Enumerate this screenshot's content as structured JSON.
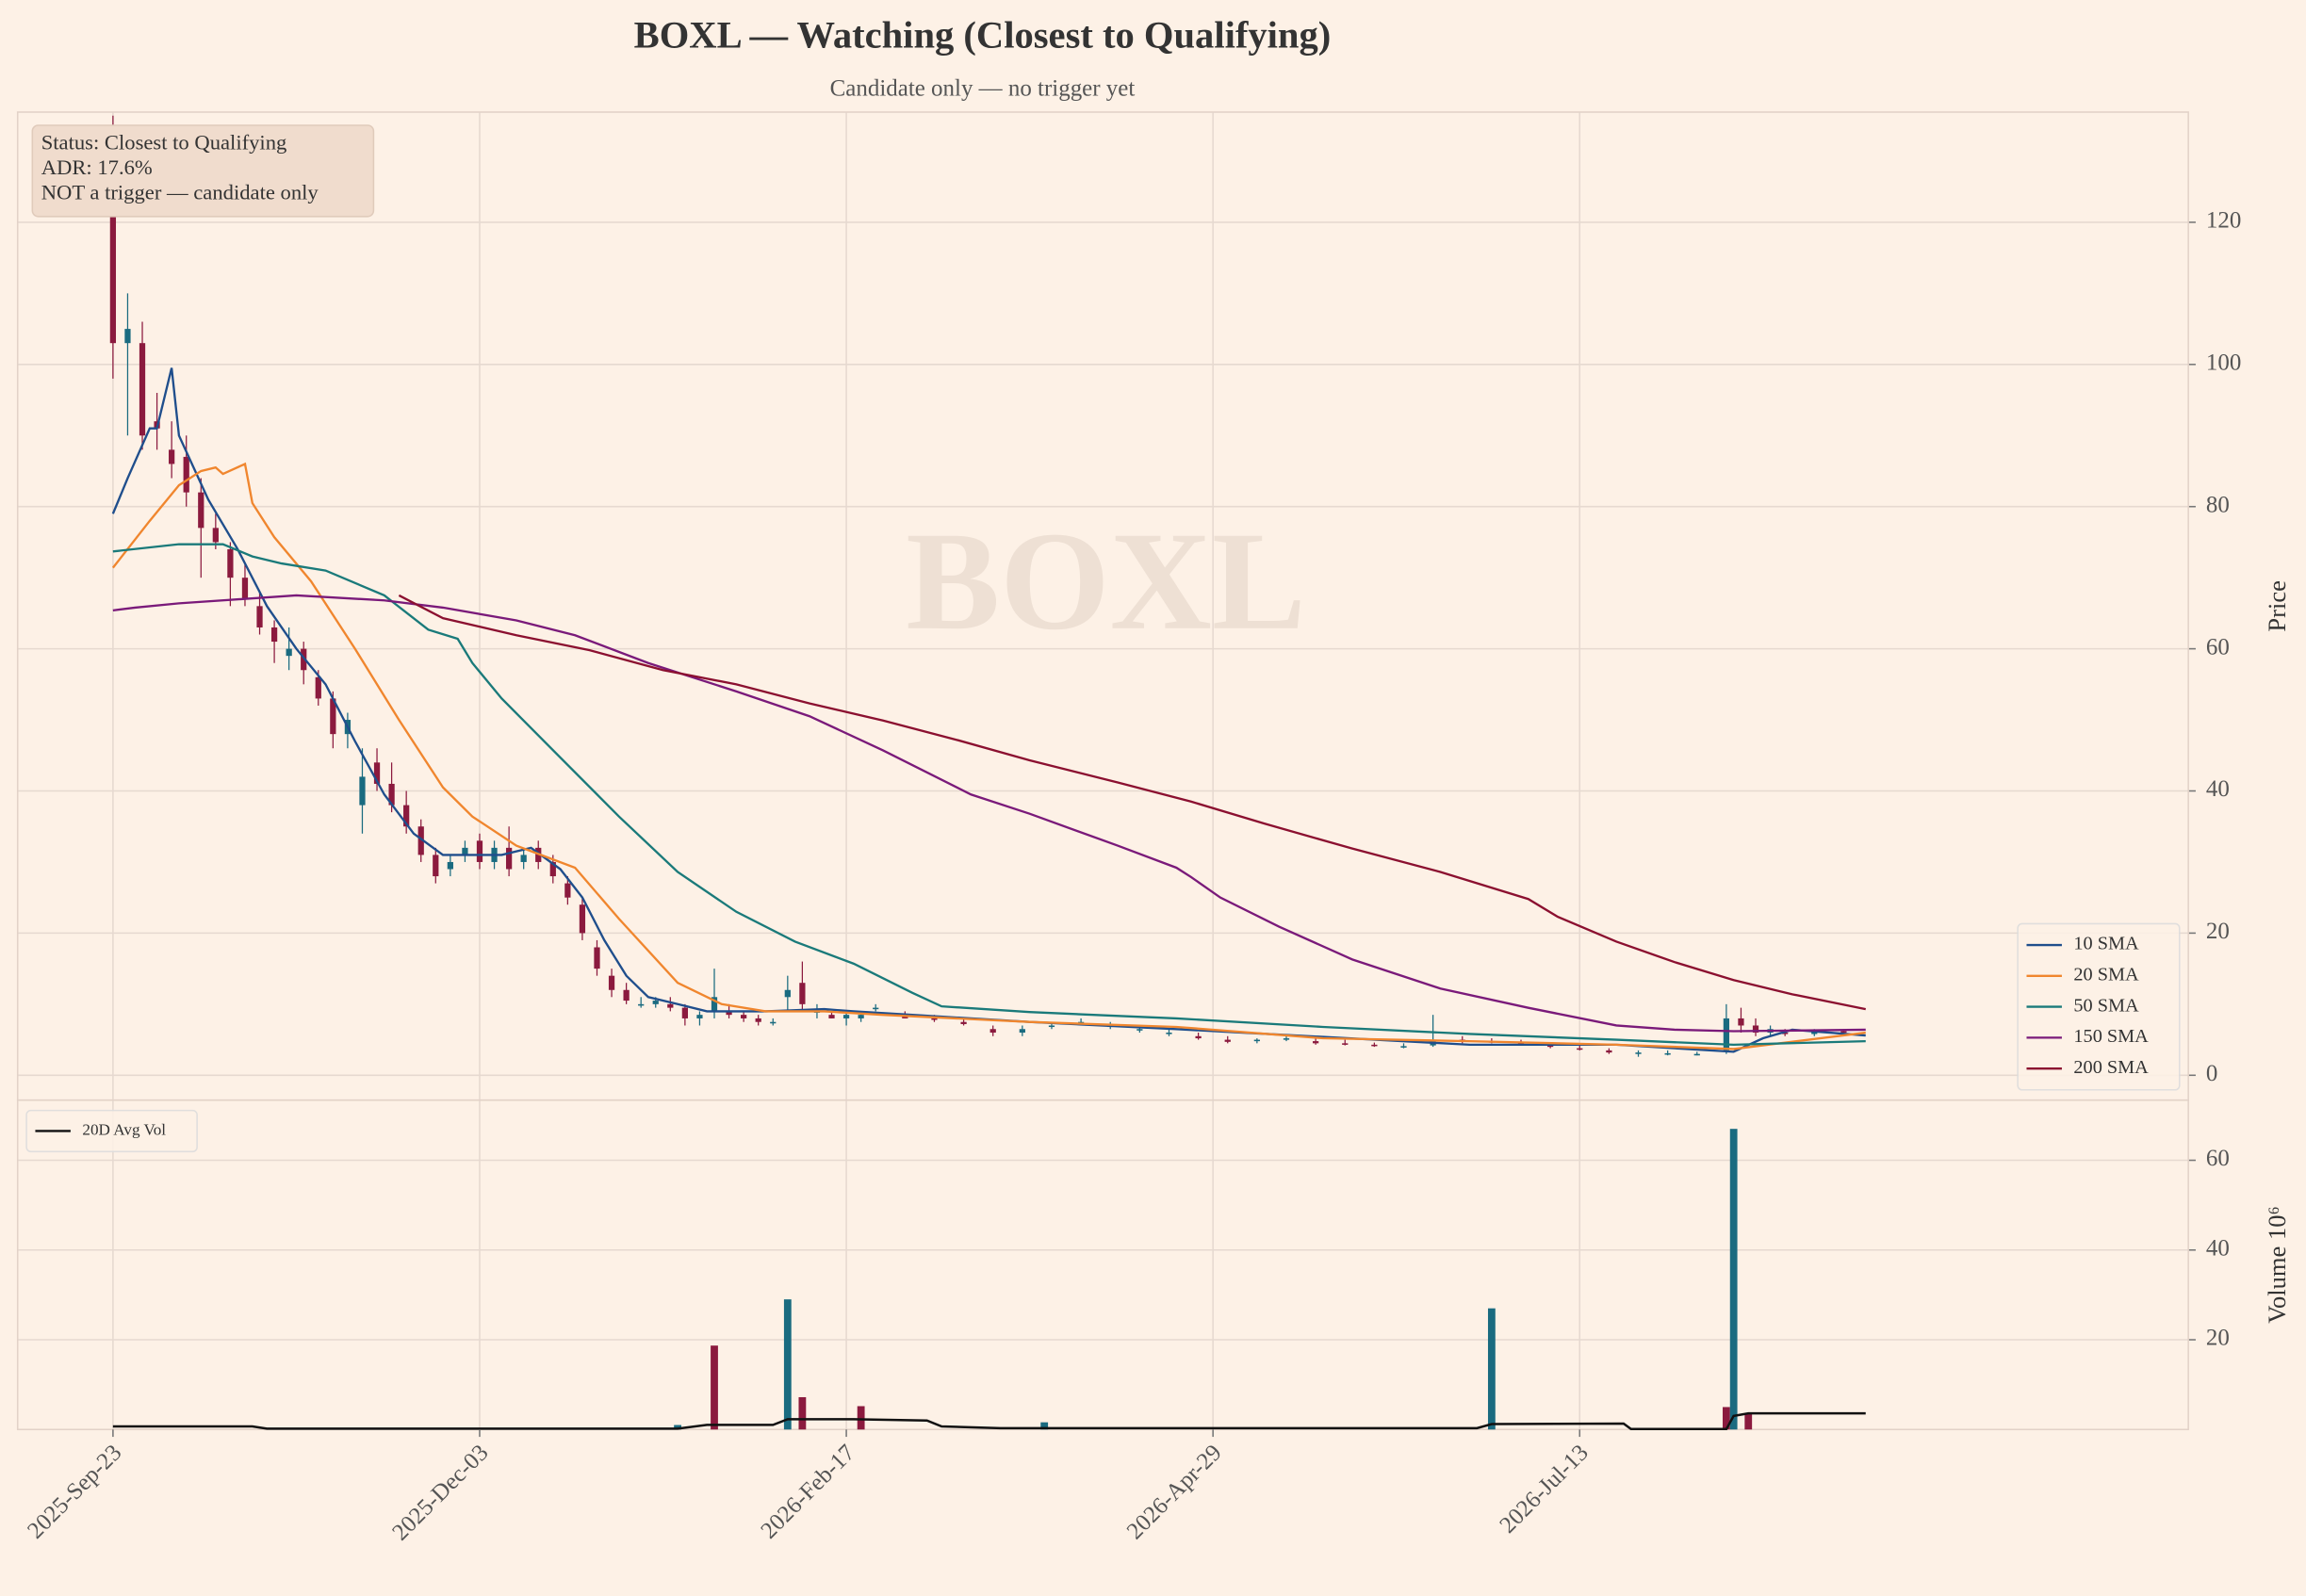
{
  "chart_data": [
    {
      "type": "candlestick",
      "title": "BOXL — Watching (Closest to Qualifying)",
      "subtitle": "Candidate only — no trigger yet",
      "watermark": "BOXL",
      "ylabel": "Price",
      "annotation": [
        "Status: Closest to Qualifying",
        "ADR: 17.6%",
        "NOT a trigger — candidate only"
      ],
      "xlim": [
        -13,
        283
      ],
      "ylim": [
        -3.5,
        135.5
      ],
      "yticks": [
        0,
        20,
        40,
        60,
        80,
        100,
        120
      ],
      "grid": true,
      "legend": "lower right",
      "up_color": "#1a6b80",
      "down_color": "#8b1a3e",
      "candles": {
        "x": [
          0,
          2,
          4,
          6,
          8,
          10,
          12,
          14,
          16,
          18,
          20,
          22,
          24,
          26,
          28,
          30,
          32,
          34,
          36,
          38,
          40,
          42,
          44,
          46,
          48,
          50,
          52,
          54,
          56,
          58,
          60,
          62,
          64,
          66,
          68,
          70,
          72,
          74,
          76,
          78,
          80,
          82,
          84,
          86,
          88,
          90,
          92,
          94,
          96,
          98,
          100,
          102,
          104,
          108,
          112,
          116,
          120,
          124,
          128,
          132,
          136,
          140,
          144,
          148,
          152,
          156,
          160,
          164,
          168,
          172,
          176,
          180,
          184,
          188,
          192,
          196,
          200,
          204,
          208,
          212,
          216,
          220,
          222,
          224,
          226,
          228,
          232,
          236
        ],
        "open": [
          122,
          103,
          103,
          92,
          88,
          87,
          82,
          77,
          74,
          70,
          66,
          63,
          59,
          60,
          56,
          53,
          48,
          38,
          44,
          41,
          38,
          35,
          31,
          29,
          31,
          33,
          30,
          32,
          30,
          32,
          30,
          27,
          24,
          18,
          14,
          12,
          10,
          10,
          10,
          9.5,
          8,
          9,
          9,
          8.5,
          8,
          7.5,
          11,
          13,
          9,
          8.5,
          8,
          8,
          9.5,
          8.5,
          8,
          7.5,
          6.5,
          6,
          7,
          7.5,
          7,
          6.5,
          6,
          5.5,
          5,
          4.8,
          5,
          4.8,
          4.5,
          4.3,
          4,
          4.2,
          5,
          4.8,
          4.5,
          4.2,
          3.8,
          3.5,
          3,
          3,
          3,
          3.5,
          8,
          7,
          6,
          6,
          5.8,
          6.2
        ],
        "high": [
          135,
          110,
          106,
          96,
          92,
          90,
          84,
          79,
          75,
          72,
          68,
          64,
          63,
          61,
          57,
          54,
          51,
          46,
          46,
          44,
          40,
          36,
          32,
          31,
          33,
          34,
          33,
          35,
          32,
          33,
          31,
          28,
          25,
          19,
          15,
          13,
          11,
          11,
          11,
          10,
          9,
          15,
          10,
          9,
          8.5,
          8,
          14,
          16,
          10,
          9,
          9,
          9,
          10,
          9,
          8.5,
          8,
          7,
          7,
          7.5,
          8,
          7.5,
          7,
          6.5,
          6,
          5.5,
          5.2,
          5.5,
          5.2,
          5,
          4.6,
          4.5,
          8.5,
          5.5,
          5.2,
          5,
          4.5,
          4.2,
          3.8,
          3.5,
          3.5,
          3.3,
          10,
          9.5,
          8,
          7,
          6.5,
          6.5,
          6.5
        ],
        "low": [
          98,
          90,
          88,
          88,
          84,
          80,
          70,
          74,
          66,
          66,
          62,
          58,
          57,
          55,
          52,
          46,
          46,
          34,
          40,
          37,
          34,
          30,
          27,
          28,
          30,
          29,
          29,
          28,
          29,
          29,
          27,
          24,
          19,
          14,
          11,
          10,
          9.5,
          9.5,
          9,
          7,
          7,
          8,
          8,
          7.5,
          7,
          7,
          9,
          9,
          8,
          8,
          7,
          7.5,
          9,
          8,
          7.5,
          7,
          5.5,
          5.5,
          6.5,
          7,
          6.5,
          6,
          5.5,
          5,
          4.5,
          4.5,
          4.8,
          4.3,
          4.2,
          4,
          3.8,
          4,
          4.5,
          4.5,
          4.2,
          3.8,
          3.5,
          3,
          2.6,
          2.8,
          2.8,
          3,
          6,
          5.5,
          5.5,
          5.5,
          5.5,
          5.8
        ],
        "close": [
          103,
          105,
          90,
          91,
          86,
          82,
          77,
          75,
          70,
          67,
          63,
          61,
          60,
          57,
          53,
          48,
          50,
          42,
          41,
          38,
          35,
          31,
          28,
          30,
          32,
          30,
          32,
          29,
          31,
          30,
          28,
          25,
          20,
          15,
          12,
          10.5,
          10,
          10.5,
          9.5,
          8,
          8.5,
          11,
          8.5,
          8,
          7.5,
          7.5,
          12,
          10,
          9,
          8,
          8.5,
          8.5,
          9.5,
          8,
          7.8,
          7.2,
          6,
          6.5,
          7,
          7.5,
          7,
          6.5,
          6,
          5.2,
          4.7,
          5,
          5.2,
          4.5,
          4.4,
          4.2,
          4.1,
          5,
          4.8,
          4.6,
          4.4,
          4,
          3.7,
          3.2,
          3.2,
          3.1,
          3,
          8,
          7,
          6,
          6.5,
          5.8,
          6.2,
          6
        ]
      },
      "series": [
        {
          "name": "10 SMA",
          "color": "#1f4e8c",
          "x": [
            0,
            2,
            5,
            6,
            8,
            9,
            13,
            17,
            21,
            25,
            29,
            33,
            37,
            41,
            45,
            49,
            53,
            57,
            61,
            64,
            67,
            70,
            73,
            77,
            81,
            89,
            97,
            101,
            109,
            125,
            145,
            165,
            185,
            205,
            221,
            225,
            229,
            239
          ],
          "values": [
            79,
            84,
            91,
            91,
            99.5,
            90,
            81,
            74,
            66,
            60,
            55,
            47,
            39.5,
            34,
            31,
            31,
            31,
            32,
            29,
            25,
            19,
            14,
            11,
            10,
            9,
            9,
            9.3,
            9,
            8.5,
            7.5,
            6.5,
            5.4,
            4.3,
            4.3,
            3.3,
            5.2,
            6.4,
            5.6
          ]
        },
        {
          "name": "20 SMA",
          "color": "#f0862e",
          "x": [
            0,
            5,
            9,
            12,
            14,
            15,
            18,
            19,
            22,
            27,
            33,
            39,
            45,
            49,
            55,
            63,
            69,
            77,
            83,
            89,
            97,
            105,
            125,
            145,
            165,
            185,
            205,
            221,
            239
          ],
          "values": [
            71.4,
            78,
            83,
            85,
            85.5,
            84.6,
            86,
            80.5,
            75.7,
            69.5,
            60,
            50,
            40.5,
            36.4,
            32.3,
            29.2,
            22,
            13,
            10,
            9,
            9,
            8.5,
            7.5,
            6.8,
            5.2,
            4.8,
            4.3,
            3.7,
            6
          ]
        },
        {
          "name": "50 SMA",
          "color": "#1a7a7a",
          "x": [
            0,
            9,
            15,
            19,
            23,
            29,
            37,
            43,
            47,
            49,
            53,
            61,
            69,
            77,
            85,
            93,
            101,
            109,
            113,
            125,
            145,
            165,
            185,
            205,
            221,
            239
          ],
          "values": [
            73.7,
            74.7,
            74.7,
            73,
            72,
            71,
            67.5,
            62.7,
            61.4,
            58,
            53,
            44.7,
            36.4,
            28.6,
            23,
            18.8,
            15.7,
            11.6,
            9.7,
            8.9,
            8,
            6.8,
            5.8,
            5,
            4.3,
            4.8
          ]
        },
        {
          "name": "150 SMA",
          "color": "#7a1a7a",
          "x": [
            0,
            3,
            9,
            25,
            37,
            45,
            55,
            63,
            73,
            85,
            95,
            105,
            117,
            125,
            137,
            145,
            147,
            151,
            159,
            169,
            181,
            193,
            205,
            213,
            221,
            239
          ],
          "values": [
            65.4,
            65.8,
            66.4,
            67.5,
            66.8,
            65.8,
            64,
            61.9,
            58,
            54,
            50.5,
            45.7,
            39.5,
            36.8,
            32.3,
            29.2,
            27.9,
            25,
            20.9,
            16.3,
            12.2,
            9.5,
            7,
            6.4,
            6.2,
            6.4
          ]
        },
        {
          "name": "200 SMA",
          "color": "#8b1030",
          "x": [
            39,
            45,
            55,
            65,
            75,
            85,
            95,
            105,
            115,
            125,
            137,
            147,
            157,
            169,
            181,
            193,
            197,
            205,
            213,
            221,
            229,
            239
          ],
          "values": [
            67.5,
            64.3,
            61.9,
            59.8,
            57,
            55,
            52.3,
            49.9,
            47.2,
            44.3,
            41.2,
            38.5,
            35.4,
            31.9,
            28.6,
            24.8,
            22.3,
            18.8,
            15.9,
            13.4,
            11.4,
            9.3
          ]
        }
      ]
    },
    {
      "type": "bar",
      "ylabel": "Volume 10⁶",
      "xlim": [
        -13,
        283
      ],
      "ylim": [
        0,
        73.4
      ],
      "yticks": [
        20,
        40,
        60
      ],
      "grid": true,
      "legend": "upper left",
      "xticks": [
        {
          "value": 0,
          "label": "2025-Sep-23"
        },
        {
          "value": 50,
          "label": "2025-Dec-03"
        },
        {
          "value": 100,
          "label": "2026-Feb-17"
        },
        {
          "value": 150,
          "label": "2026-Apr-29"
        },
        {
          "value": 200,
          "label": "2026-Jul-13"
        }
      ],
      "bars": {
        "x": [
          77,
          82,
          92,
          94,
          102,
          127,
          188,
          220,
          221,
          223
        ],
        "values": [
          1,
          18.7,
          29,
          7.2,
          5.2,
          1.6,
          27,
          5,
          67,
          3.6
        ],
        "colors": [
          "#1a6b80",
          "#8b1a3e",
          "#1a6b80",
          "#8b1a3e",
          "#8b1a3e",
          "#1a6b80",
          "#1a6b80",
          "#8b1a3e",
          "#1a6b80",
          "#8b1a3e"
        ]
      },
      "series": [
        {
          "name": "20D Avg Vol",
          "color": "#111111",
          "x": [
            0,
            19,
            21,
            77,
            81,
            90,
            92,
            101,
            111,
            113,
            121,
            186,
            188,
            206,
            207,
            220,
            221,
            223,
            239
          ],
          "values": [
            0.7,
            0.7,
            0.2,
            0.2,
            1,
            1,
            2.3,
            2.3,
            2,
            0.7,
            0.3,
            0.3,
            1.2,
            1.3,
            0.1,
            0.1,
            3,
            3.6,
            3.6
          ]
        }
      ]
    }
  ]
}
